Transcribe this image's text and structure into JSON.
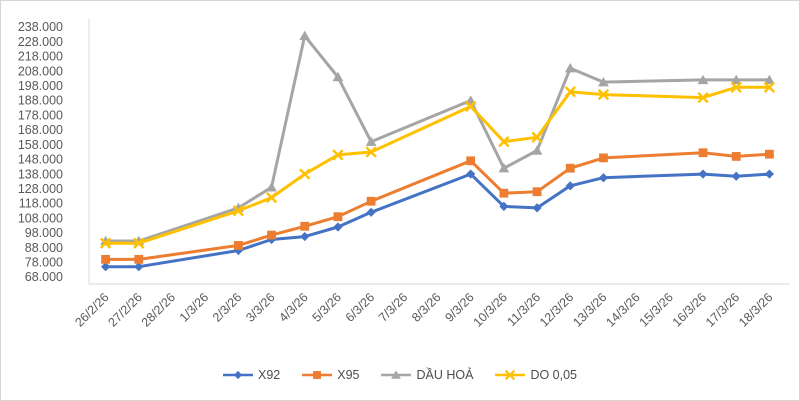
{
  "chart_data": {
    "type": "line",
    "title": "",
    "categories": [
      "26/2/26",
      "27/2/26",
      "28/2/26",
      "1/3/26",
      "2/3/26",
      "3/3/26",
      "4/3/26",
      "5/3/26",
      "6/3/26",
      "7/3/26",
      "8/3/26",
      "9/3/26",
      "10/3/26",
      "11/3/26",
      "12/3/26",
      "13/3/26",
      "14/3/26",
      "15/3/26",
      "16/3/26",
      "17/3/26",
      "18/3/26"
    ],
    "series": [
      {
        "id": "x92",
        "name": "X92",
        "color": "#4472C4",
        "marker": "diamond",
        "values": [
          75000,
          75000,
          null,
          null,
          86000,
          93500,
          95500,
          102000,
          112000,
          null,
          null,
          138000,
          116000,
          115000,
          130000,
          135500,
          null,
          null,
          138000,
          136500,
          138000
        ]
      },
      {
        "id": "x95",
        "name": "X95",
        "color": "#ED7D31",
        "marker": "square",
        "values": [
          80000,
          80000,
          null,
          null,
          89500,
          96500,
          102500,
          109000,
          119500,
          null,
          null,
          147000,
          125000,
          126000,
          142000,
          149000,
          null,
          null,
          152500,
          150000,
          151500
        ]
      },
      {
        "id": "dau-hoa",
        "name": "DẦU HOẢ",
        "color": "#A5A5A5",
        "marker": "triangle",
        "values": [
          92500,
          92500,
          null,
          null,
          115000,
          129000,
          232000,
          204000,
          160000,
          null,
          null,
          188000,
          142000,
          154000,
          210000,
          200500,
          null,
          null,
          202000,
          202000,
          202000
        ]
      },
      {
        "id": "do-005",
        "name": "DO 0,05",
        "color": "#FFC000",
        "marker": "x",
        "values": [
          91000,
          91000,
          null,
          null,
          113000,
          122000,
          138000,
          151000,
          153000,
          null,
          null,
          184000,
          160000,
          163000,
          194000,
          192000,
          null,
          null,
          190000,
          197000,
          197000
        ]
      }
    ],
    "y_axis": {
      "min": 68000,
      "max": 238000,
      "step": 10000,
      "tick_values": [
        238000,
        228000,
        218000,
        208000,
        198000,
        188000,
        178000,
        168000,
        158000,
        148000,
        138000,
        128000,
        118000,
        108000,
        98000,
        88000,
        78000,
        68000
      ],
      "tick_labels": [
        "238.000",
        "228.000",
        "218.000",
        "208.000",
        "198.000",
        "188.000",
        "178.000",
        "168.000",
        "158.000",
        "148.000",
        "138.000",
        "128.000",
        "118.000",
        "108.000",
        "98.000",
        "88.000",
        "78.000",
        "68.000"
      ]
    },
    "x_axis": {
      "label_rotation": -45
    },
    "legend": {
      "position": "bottom",
      "entries": [
        "X92",
        "X95",
        "DẦU HOẢ",
        "DO 0,05"
      ]
    },
    "grid": false,
    "colors": {
      "axis_line": "#D9D9D9",
      "tick_text": "#595959",
      "legend_text": "#4d4d4d",
      "frame_border": "#d6d6d6",
      "background": "#ffffff"
    }
  }
}
